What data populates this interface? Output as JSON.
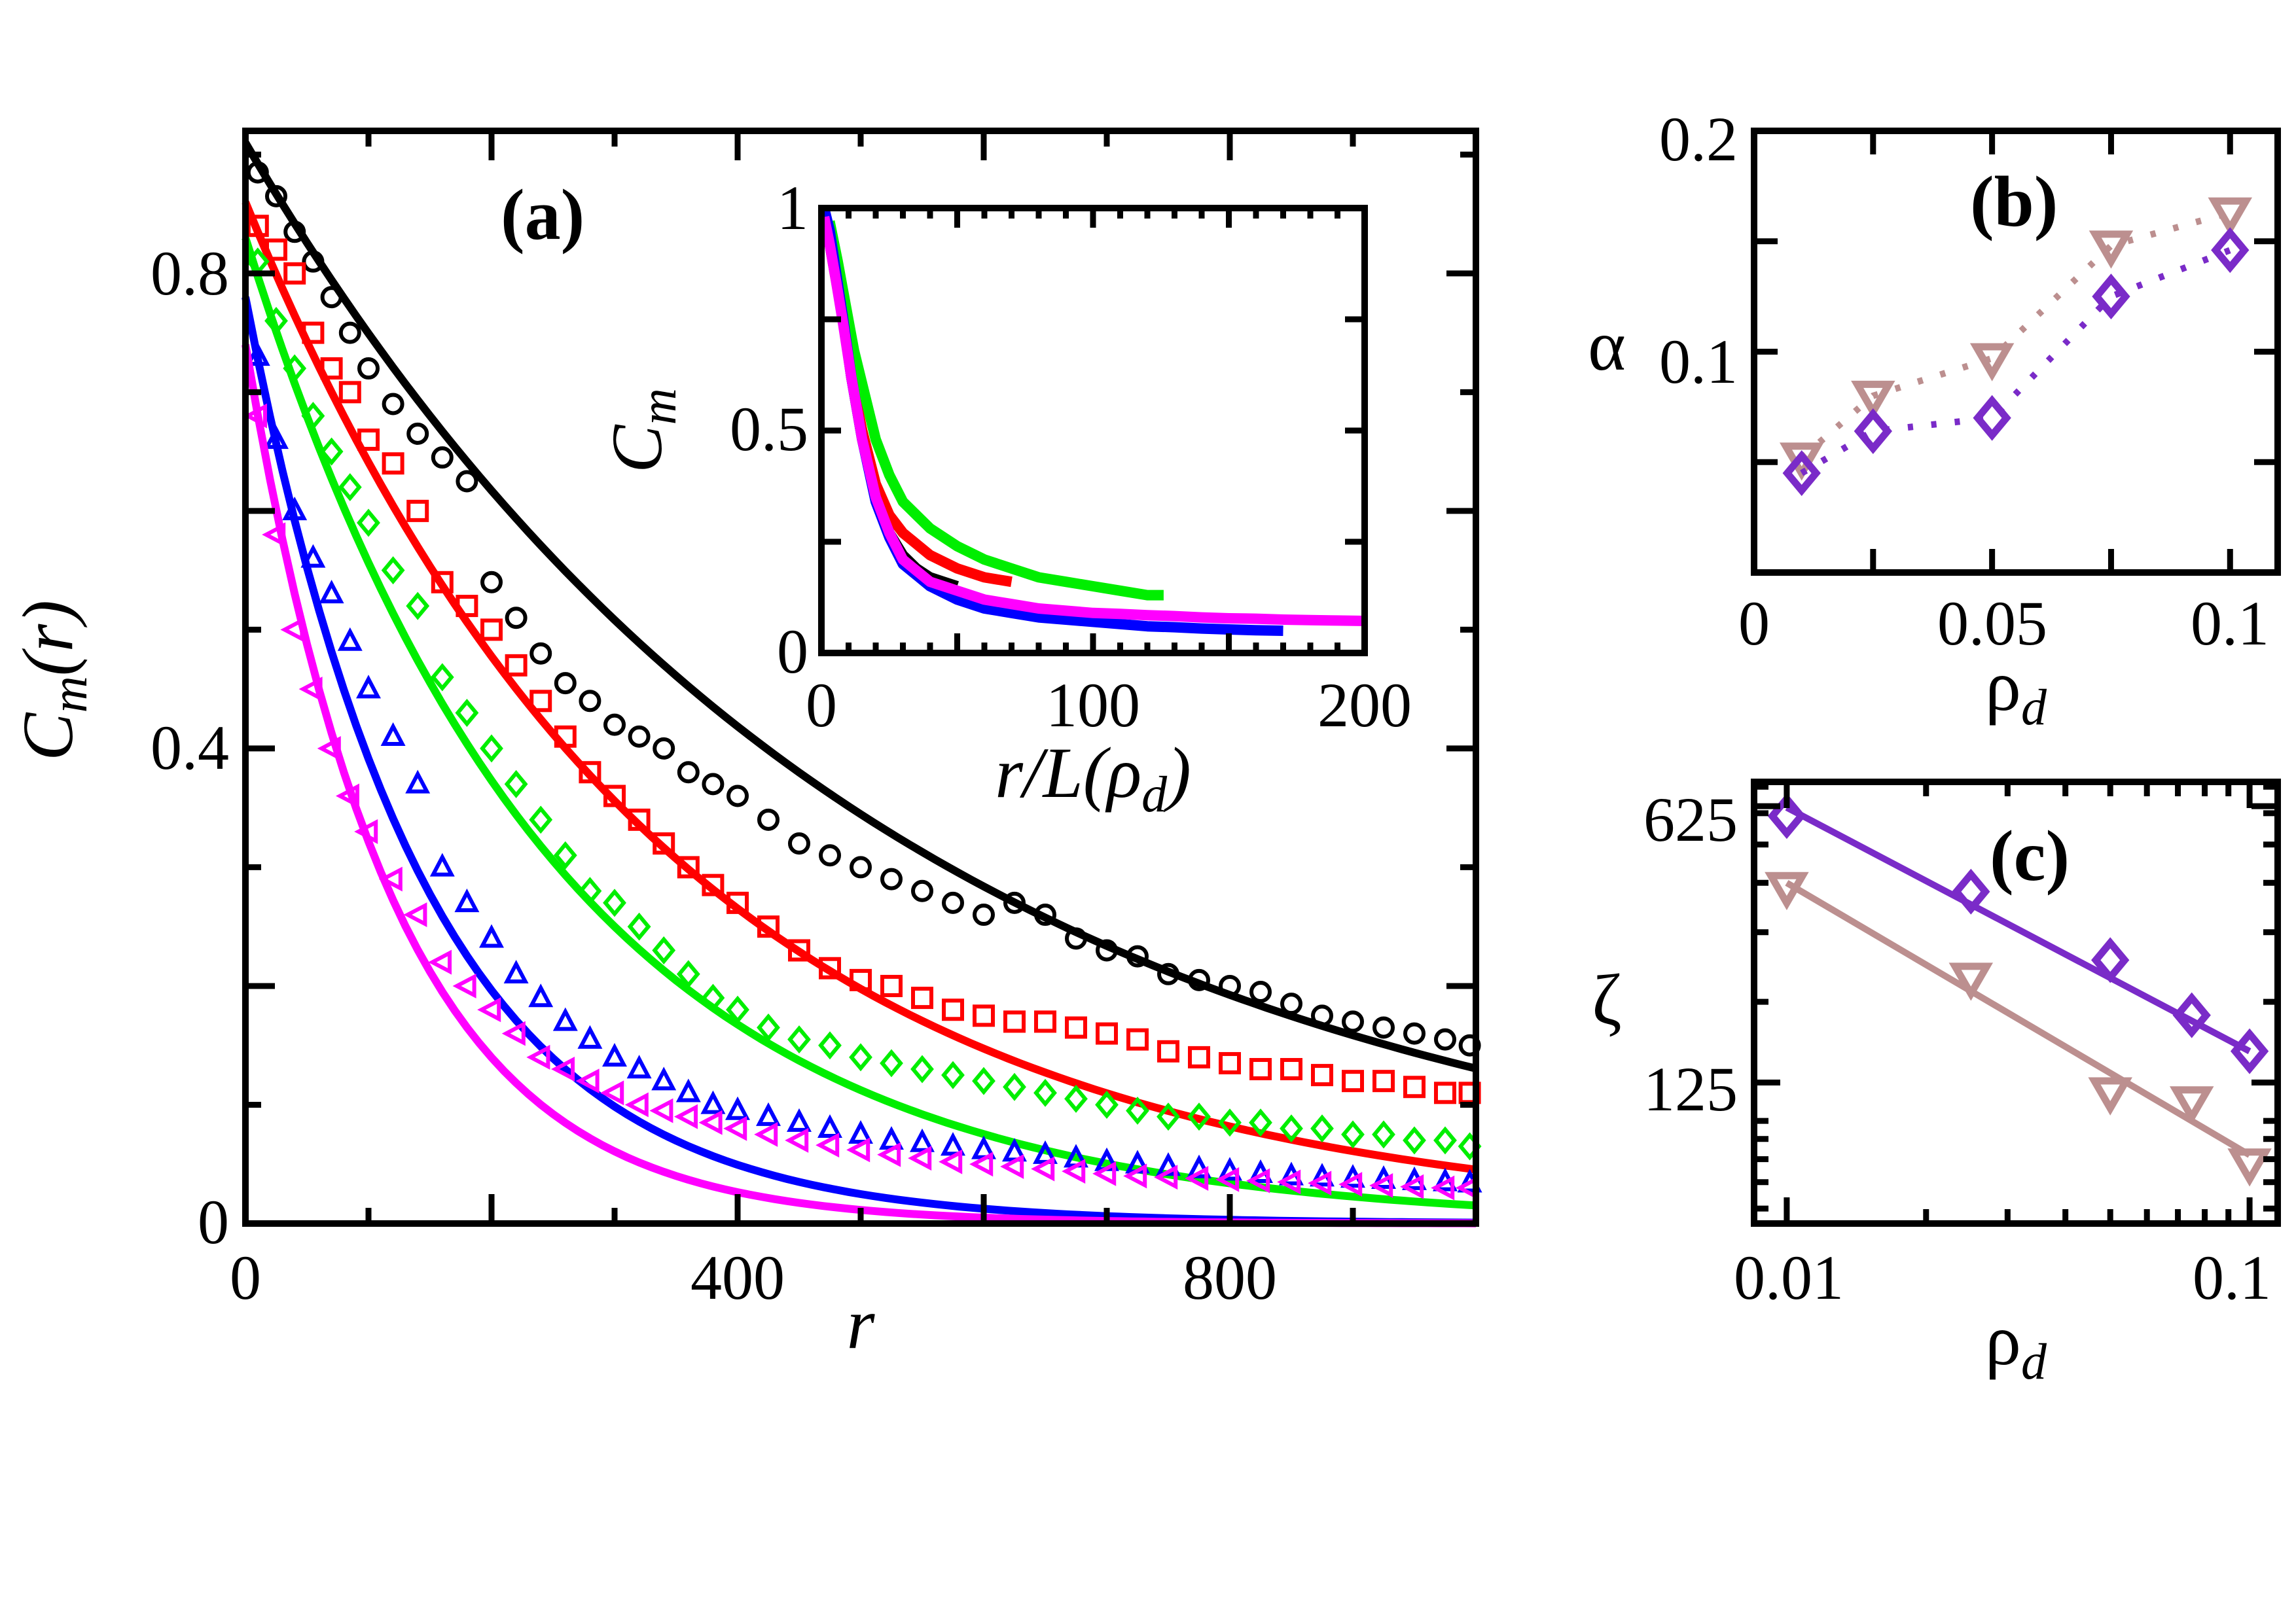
{
  "colors": {
    "black": "#000000",
    "red": "#ff0000",
    "green": "#00ee00",
    "blue": "#0000ff",
    "magenta": "#ff00ff",
    "purple": "#7a2bc8",
    "tan": "#bc8f8f"
  },
  "chart_data": [
    {
      "id": "a",
      "type": "scatter",
      "panel_label": "(a)",
      "xlabel": "r",
      "ylabel_main": "C",
      "ylabel_sub": "m",
      "ylabel_tail": "(r)",
      "xlim": [
        0,
        1000
      ],
      "ylim": [
        0,
        0.92
      ],
      "xticks": [
        0,
        400,
        800
      ],
      "xtick_labels": [
        "0",
        "400",
        "800"
      ],
      "yticks": [
        0,
        0.4,
        0.8
      ],
      "ytick_labels": [
        "0",
        "0.4",
        "0.8"
      ],
      "series": [
        {
          "name": "black-circles",
          "color": "#000000",
          "marker": "circle",
          "x": [
            10,
            25,
            40,
            55,
            70,
            85,
            100,
            120,
            140,
            160,
            180,
            200,
            220,
            240,
            260,
            280,
            300,
            320,
            340,
            360,
            380,
            400,
            425,
            450,
            475,
            500,
            525,
            550,
            575,
            600,
            625,
            650,
            675,
            700,
            725,
            750,
            775,
            800,
            825,
            850,
            875,
            900,
            925,
            950,
            975,
            995
          ],
          "y": [
            0.885,
            0.865,
            0.835,
            0.81,
            0.78,
            0.75,
            0.72,
            0.69,
            0.665,
            0.645,
            0.625,
            0.54,
            0.51,
            0.48,
            0.455,
            0.44,
            0.42,
            0.41,
            0.4,
            0.38,
            0.37,
            0.36,
            0.34,
            0.32,
            0.31,
            0.3,
            0.29,
            0.28,
            0.27,
            0.26,
            0.27,
            0.26,
            0.24,
            0.23,
            0.225,
            0.21,
            0.205,
            0.2,
            0.195,
            0.185,
            0.175,
            0.17,
            0.165,
            0.16,
            0.155,
            0.15
          ],
          "fit": {
            "a": 0.91,
            "tau": 515
          }
        },
        {
          "name": "red-squares",
          "color": "#ff0000",
          "marker": "square",
          "x": [
            10,
            25,
            40,
            55,
            70,
            85,
            100,
            120,
            140,
            160,
            180,
            200,
            220,
            240,
            260,
            280,
            300,
            320,
            340,
            360,
            380,
            400,
            425,
            450,
            475,
            500,
            525,
            550,
            575,
            600,
            625,
            650,
            675,
            700,
            725,
            750,
            775,
            800,
            825,
            850,
            875,
            900,
            925,
            950,
            975,
            995
          ],
          "y": [
            0.84,
            0.82,
            0.8,
            0.75,
            0.72,
            0.7,
            0.66,
            0.64,
            0.6,
            0.54,
            0.52,
            0.5,
            0.47,
            0.44,
            0.41,
            0.38,
            0.36,
            0.34,
            0.32,
            0.3,
            0.285,
            0.27,
            0.25,
            0.23,
            0.215,
            0.205,
            0.2,
            0.19,
            0.18,
            0.175,
            0.17,
            0.17,
            0.165,
            0.16,
            0.155,
            0.145,
            0.14,
            0.135,
            0.13,
            0.13,
            0.125,
            0.12,
            0.12,
            0.115,
            0.11,
            0.11
          ],
          "fit": {
            "a": 0.86,
            "tau": 340
          }
        },
        {
          "name": "green-diamonds",
          "color": "#00ee00",
          "marker": "diamond",
          "x": [
            10,
            25,
            40,
            55,
            70,
            85,
            100,
            120,
            140,
            160,
            180,
            200,
            220,
            240,
            260,
            280,
            300,
            320,
            340,
            360,
            380,
            400,
            425,
            450,
            475,
            500,
            525,
            550,
            575,
            600,
            625,
            650,
            675,
            700,
            725,
            750,
            775,
            800,
            825,
            850,
            875,
            900,
            925,
            950,
            975,
            995
          ],
          "y": [
            0.81,
            0.76,
            0.72,
            0.68,
            0.65,
            0.62,
            0.59,
            0.55,
            0.52,
            0.46,
            0.43,
            0.4,
            0.37,
            0.34,
            0.31,
            0.28,
            0.27,
            0.25,
            0.23,
            0.21,
            0.19,
            0.18,
            0.165,
            0.155,
            0.15,
            0.14,
            0.135,
            0.13,
            0.125,
            0.12,
            0.115,
            0.11,
            0.105,
            0.1,
            0.095,
            0.09,
            0.09,
            0.085,
            0.085,
            0.08,
            0.08,
            0.075,
            0.075,
            0.07,
            0.07,
            0.065
          ],
          "fit": {
            "a": 0.83,
            "tau": 250
          }
        },
        {
          "name": "blue-triangles",
          "color": "#0000ff",
          "marker": "triangle-up",
          "x": [
            10,
            25,
            40,
            55,
            70,
            85,
            100,
            120,
            140,
            160,
            180,
            200,
            220,
            240,
            260,
            280,
            300,
            320,
            340,
            360,
            380,
            400,
            425,
            450,
            475,
            500,
            525,
            550,
            575,
            600,
            625,
            650,
            675,
            700,
            725,
            750,
            775,
            800,
            825,
            850,
            875,
            900,
            925,
            950,
            975,
            995
          ],
          "y": [
            0.73,
            0.66,
            0.6,
            0.56,
            0.53,
            0.49,
            0.45,
            0.41,
            0.37,
            0.3,
            0.27,
            0.24,
            0.21,
            0.19,
            0.17,
            0.155,
            0.14,
            0.13,
            0.12,
            0.11,
            0.1,
            0.095,
            0.09,
            0.085,
            0.08,
            0.075,
            0.07,
            0.068,
            0.065,
            0.062,
            0.06,
            0.058,
            0.055,
            0.052,
            0.05,
            0.048,
            0.046,
            0.044,
            0.042,
            0.04,
            0.039,
            0.038,
            0.037,
            0.036,
            0.035,
            0.034
          ],
          "fit": {
            "a": 0.78,
            "tau": 145
          }
        },
        {
          "name": "magenta-triangles",
          "color": "#ff00ff",
          "marker": "triangle-left",
          "x": [
            10,
            25,
            40,
            55,
            70,
            85,
            100,
            120,
            140,
            160,
            180,
            200,
            220,
            240,
            260,
            280,
            300,
            320,
            340,
            360,
            380,
            400,
            425,
            450,
            475,
            500,
            525,
            550,
            575,
            600,
            625,
            650,
            675,
            700,
            725,
            750,
            775,
            800,
            825,
            850,
            875,
            900,
            925,
            950,
            975,
            995
          ],
          "y": [
            0.68,
            0.58,
            0.5,
            0.45,
            0.4,
            0.36,
            0.33,
            0.29,
            0.26,
            0.22,
            0.2,
            0.18,
            0.16,
            0.14,
            0.13,
            0.12,
            0.11,
            0.1,
            0.095,
            0.09,
            0.085,
            0.08,
            0.075,
            0.07,
            0.066,
            0.062,
            0.058,
            0.055,
            0.052,
            0.05,
            0.048,
            0.046,
            0.044,
            0.042,
            0.04,
            0.039,
            0.038,
            0.037,
            0.036,
            0.035,
            0.034,
            0.033,
            0.032,
            0.031,
            0.03,
            0.03
          ],
          "fit": {
            "a": 0.74,
            "tau": 120
          }
        }
      ]
    },
    {
      "id": "a-inset",
      "type": "scatter",
      "xlabel_main": "r/L(ρ",
      "xlabel_sub": "d",
      "xlabel_tail": ")",
      "ylabel_main": "C",
      "ylabel_sub": "m",
      "xlim": [
        0,
        200
      ],
      "ylim": [
        0,
        1
      ],
      "xticks": [
        0,
        100,
        200
      ],
      "xtick_labels": [
        "0",
        "100",
        "200"
      ],
      "yticks": [
        0,
        0.5,
        1
      ],
      "ytick_labels": [
        "0",
        "0.5",
        "1"
      ],
      "series": [
        {
          "name": "black",
          "color": "#000000",
          "x": [
            1,
            3,
            5,
            8,
            11,
            15,
            20,
            25,
            30,
            35,
            40,
            45,
            50
          ],
          "y": [
            0.99,
            0.93,
            0.86,
            0.75,
            0.62,
            0.48,
            0.35,
            0.27,
            0.22,
            0.19,
            0.17,
            0.16,
            0.15
          ]
        },
        {
          "name": "red",
          "color": "#ff0000",
          "x": [
            1,
            3,
            5,
            8,
            11,
            15,
            20,
            25,
            30,
            40,
            50,
            60,
            70
          ],
          "y": [
            0.99,
            0.92,
            0.85,
            0.75,
            0.62,
            0.5,
            0.38,
            0.31,
            0.27,
            0.22,
            0.19,
            0.17,
            0.16
          ]
        },
        {
          "name": "green",
          "color": "#00ee00",
          "x": [
            3,
            6,
            9,
            12,
            16,
            20,
            25,
            30,
            40,
            50,
            60,
            70,
            80,
            90,
            100,
            110,
            120,
            126
          ],
          "y": [
            0.97,
            0.88,
            0.78,
            0.68,
            0.58,
            0.48,
            0.4,
            0.34,
            0.28,
            0.24,
            0.21,
            0.19,
            0.17,
            0.16,
            0.15,
            0.14,
            0.13,
            0.13
          ]
        },
        {
          "name": "blue",
          "color": "#0000ff",
          "x": [
            1,
            3,
            5,
            8,
            11,
            15,
            20,
            25,
            30,
            40,
            50,
            60,
            70,
            80,
            90,
            100,
            110,
            120,
            130,
            140,
            150,
            160,
            170
          ],
          "y": [
            1.0,
            0.95,
            0.87,
            0.75,
            0.62,
            0.48,
            0.34,
            0.26,
            0.2,
            0.15,
            0.12,
            0.1,
            0.09,
            0.08,
            0.075,
            0.07,
            0.065,
            0.06,
            0.058,
            0.055,
            0.053,
            0.051,
            0.05
          ]
        },
        {
          "name": "magenta",
          "color": "#ff00ff",
          "x": [
            1,
            3,
            5,
            8,
            11,
            15,
            20,
            25,
            30,
            40,
            50,
            60,
            70,
            80,
            90,
            100,
            110,
            120,
            130,
            140,
            150,
            160,
            170,
            180,
            190,
            200
          ],
          "y": [
            0.98,
            0.92,
            0.85,
            0.74,
            0.62,
            0.48,
            0.35,
            0.27,
            0.21,
            0.16,
            0.14,
            0.12,
            0.11,
            0.1,
            0.095,
            0.09,
            0.088,
            0.085,
            0.083,
            0.08,
            0.078,
            0.077,
            0.075,
            0.074,
            0.073,
            0.072
          ]
        }
      ]
    },
    {
      "id": "b",
      "type": "scatter",
      "panel_label": "(b)",
      "xlabel_main": "ρ",
      "xlabel_sub": "d",
      "ylabel": "α",
      "xlim": [
        0,
        0.11
      ],
      "ylim": [
        0,
        0.2
      ],
      "xticks": [
        0,
        0.05,
        0.1
      ],
      "xtick_labels": [
        "0",
        "0.05",
        "0.1"
      ],
      "yticks": [
        0.1,
        0.2
      ],
      "ytick_labels": [
        "0.1",
        "0.2"
      ],
      "series": [
        {
          "name": "tan-triangles",
          "color": "#bc8f8f",
          "marker": "triangle-down",
          "x": [
            0.01,
            0.025,
            0.05,
            0.075,
            0.1
          ],
          "y": [
            0.052,
            0.08,
            0.097,
            0.148,
            0.163
          ]
        },
        {
          "name": "purple-diamonds",
          "color": "#7a2bc8",
          "marker": "diamond",
          "x": [
            0.01,
            0.025,
            0.05,
            0.075,
            0.1
          ],
          "y": [
            0.045,
            0.064,
            0.07,
            0.125,
            0.146
          ]
        }
      ]
    },
    {
      "id": "c",
      "type": "scatter",
      "panel_label": "(c)",
      "xlabel_main": "ρ",
      "xlabel_sub": "d",
      "ylabel": "ζ",
      "xscale": "log",
      "yscale": "log",
      "xlim": [
        0.0085,
        0.115
      ],
      "ylim": [
        55,
        720
      ],
      "xticks": [
        0.01,
        0.1
      ],
      "xtick_labels": [
        "0.01",
        "0.1"
      ],
      "yticks": [
        125,
        625
      ],
      "ytick_labels": [
        "125",
        "625"
      ],
      "series": [
        {
          "name": "purple-diamonds",
          "color": "#7a2bc8",
          "marker": "diamond",
          "x": [
            0.01,
            0.025,
            0.05,
            0.075,
            0.1
          ],
          "y": [
            590,
            380,
            255,
            185,
            150
          ],
          "fit": {
            "x": [
              0.01,
              0.1
            ],
            "y": [
              620,
              150
            ]
          }
        },
        {
          "name": "tan-triangles",
          "color": "#bc8f8f",
          "marker": "triangle-down",
          "x": [
            0.01,
            0.025,
            0.05,
            0.075,
            0.1
          ],
          "y": [
            390,
            230,
            118,
            112,
            78
          ],
          "fit": {
            "x": [
              0.01,
              0.1
            ],
            "y": [
              400,
              82
            ]
          }
        }
      ]
    }
  ]
}
